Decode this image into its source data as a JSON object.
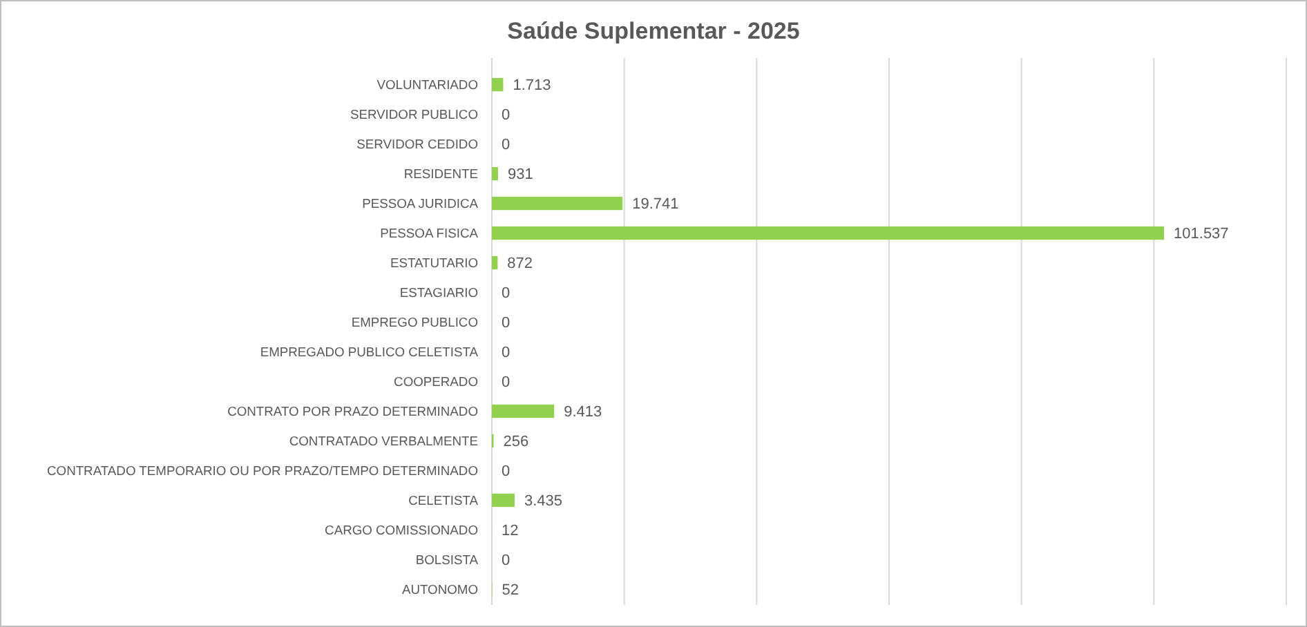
{
  "chart_data": {
    "type": "bar",
    "orientation": "horizontal",
    "title": "Saúde Suplementar - 2025",
    "categories": [
      "VOLUNTARIADO",
      "SERVIDOR PUBLICO",
      "SERVIDOR CEDIDO",
      "RESIDENTE",
      "PESSOA JURIDICA",
      "PESSOA FISICA",
      "ESTATUTARIO",
      "ESTAGIARIO",
      "EMPREGO PUBLICO",
      "EMPREGADO PUBLICO CELETISTA",
      "COOPERADO",
      "CONTRATO POR PRAZO DETERMINADO",
      "CONTRATADO VERBALMENTE",
      "CONTRATADO TEMPORARIO OU POR PRAZO/TEMPO DETERMINADO",
      "CELETISTA",
      "CARGO COMISSIONADO",
      "BOLSISTA",
      "AUTONOMO"
    ],
    "values": [
      1713,
      0,
      0,
      931,
      19741,
      101537,
      872,
      0,
      0,
      0,
      0,
      9413,
      256,
      0,
      3435,
      12,
      0,
      52
    ],
    "value_labels": [
      "1.713",
      "0",
      "0",
      "931",
      "19.741",
      "101.537",
      "872",
      "0",
      "0",
      "0",
      "0",
      "9.413",
      "256",
      "0",
      "3.435",
      "12",
      "0",
      "52"
    ],
    "color": "#92d050",
    "xlim": [
      0,
      120000
    ],
    "xticks": [
      {
        "value": 0,
        "label": null
      },
      {
        "value": 20000,
        "label": null
      },
      {
        "value": 40000,
        "label": null
      },
      {
        "value": 60000,
        "label": null
      },
      {
        "value": 80000,
        "label": null
      },
      {
        "value": 100000,
        "label": null
      },
      {
        "value": 120000,
        "label": null
      }
    ],
    "grid": "x",
    "tick_labels": "y"
  }
}
